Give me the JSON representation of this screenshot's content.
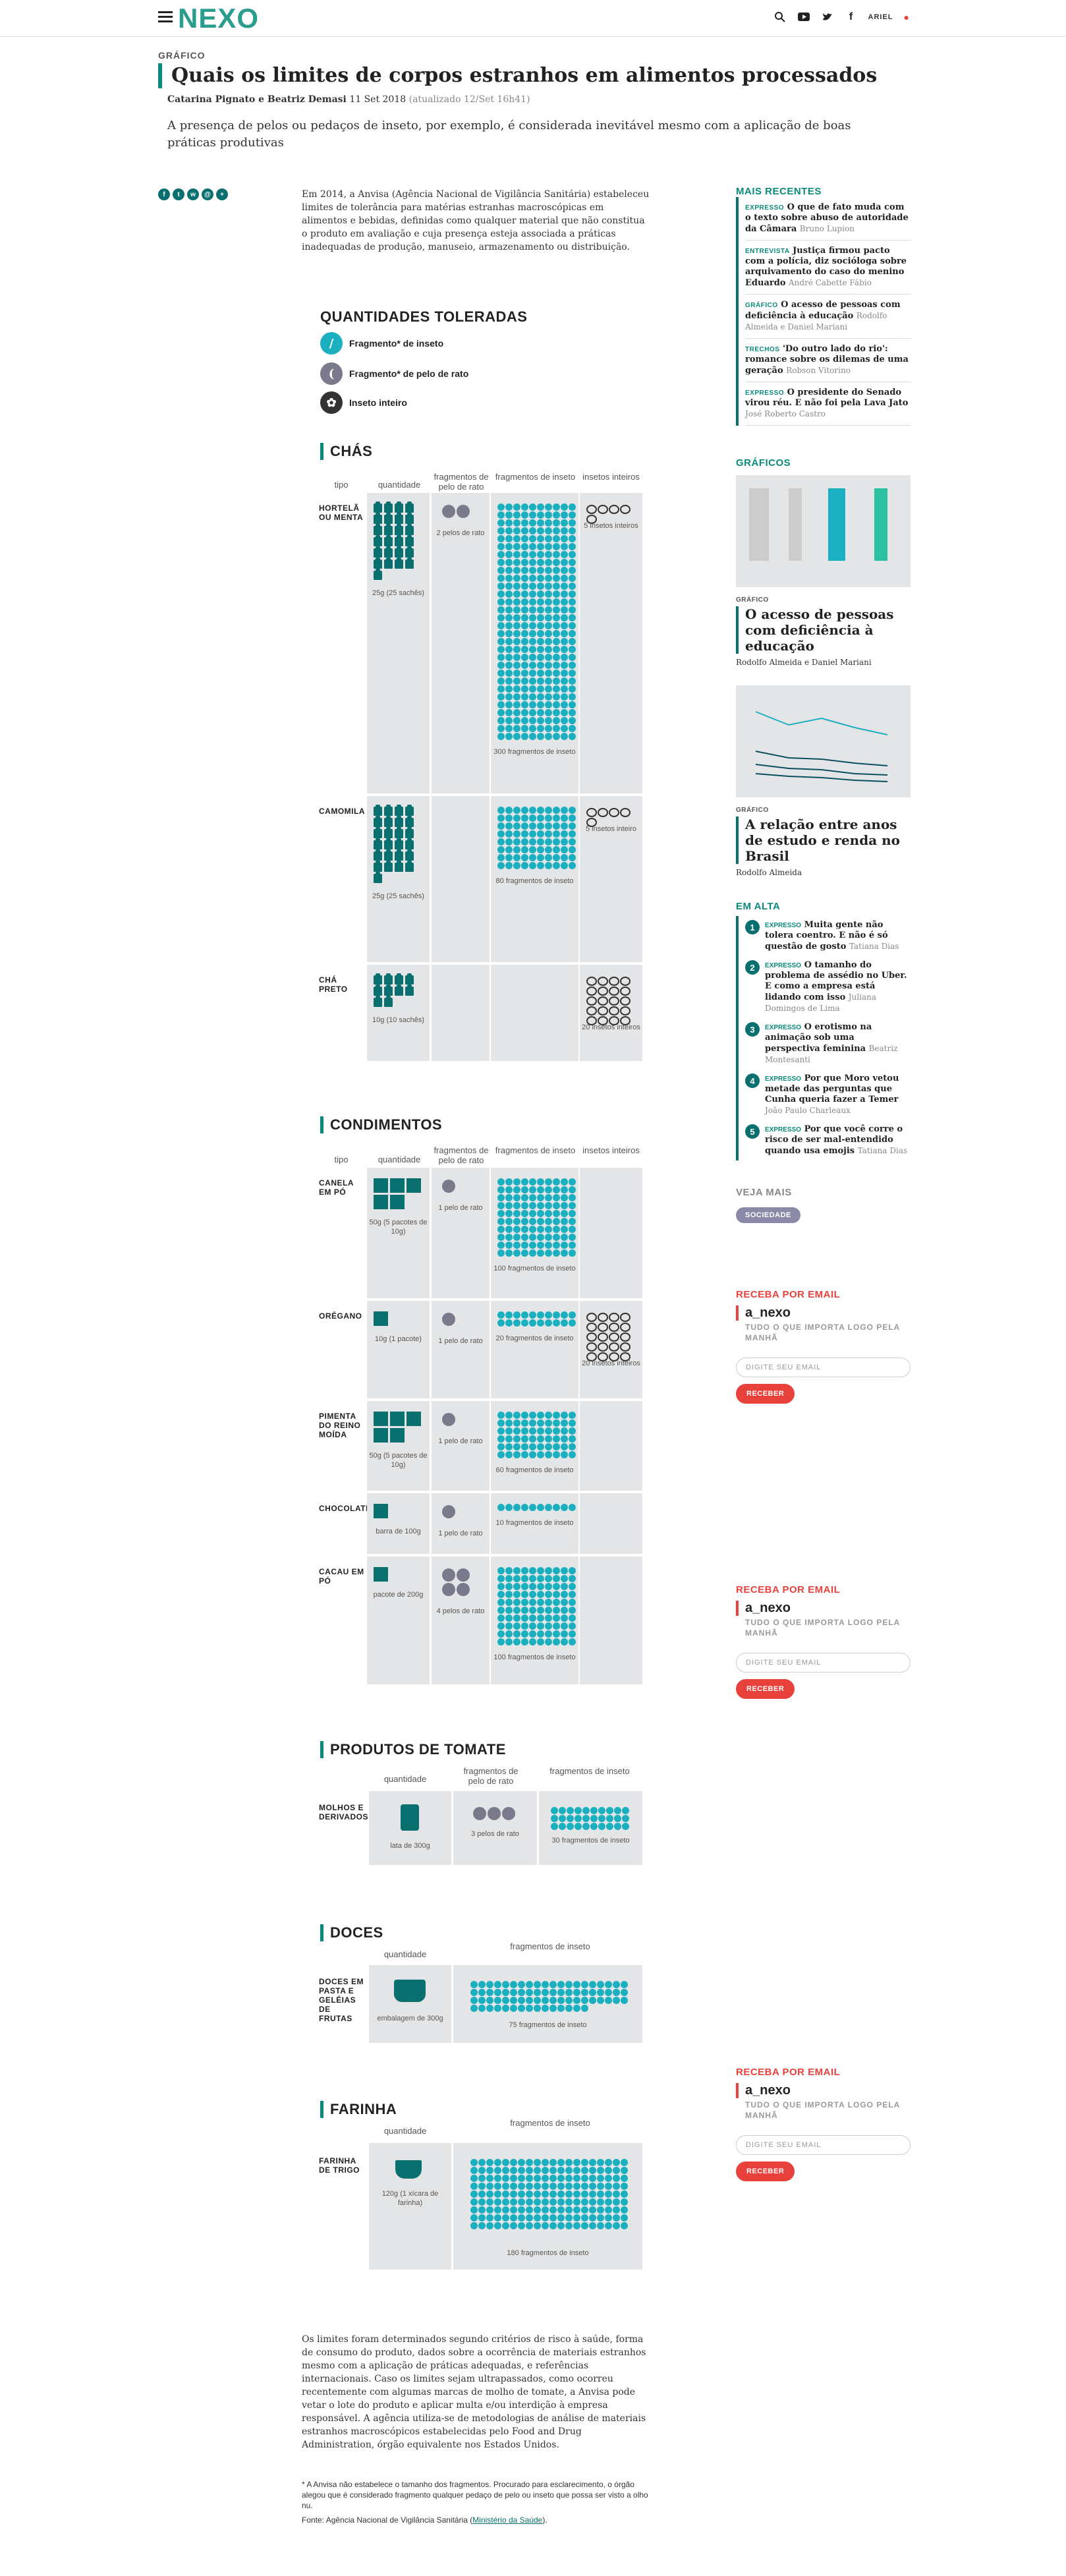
{
  "header": {
    "logo": "NEXO",
    "user": "ARIEL"
  },
  "article": {
    "kicker": "GRÁFICO",
    "title": "Quais os limites de corpos estranhos em alimentos processados",
    "authors": "Catarina Pignato e Beatriz Demasi",
    "date": "11 Set 2018",
    "updated": "(atualizado 12/Set 16h41)",
    "lead": "A presença de pelos ou pedaços de inseto, por exemplo, é considerada inevitável mesmo com a aplicação de boas práticas produtivas",
    "intro": "Em 2014, a Anvisa (Agência Nacional de Vigilância Sanitária) estabeleceu limites de tolerância para matérias estranhas macroscópicas em alimentos e bebidas, definidas como qualquer material que não constitua o produto em avaliação e cuja presença esteja associada a práticas inadequadas de produção, manuseio, armazenamento ou distribuição.",
    "outro": "Os limites foram determinados segundo critérios de risco à saúde, forma de consumo do produto, dados sobre a ocorrência de materiais estranhos mesmo com a aplicação de práticas adequadas, e referências internacionais. Caso os limites sejam ultrapassados, como ocorreu recentemente com algumas marcas de molho de tomate, a Anvisa pode vetar o lote do produto e aplicar multa e/ou interdição à empresa responsável. A agência utiliza-se de metodologias de análise de materiais estranhos macroscópicos estabelecidas pelo Food and Drug Administration, órgão equivalente nos Estados Unidos.",
    "footnote": "* A Anvisa não estabelece o tamanho dos fragmentos. Procurado para esclarecimento, o órgão alegou que é considerado fragmento qualquer pedaço de pelo ou inseto que possa ser visto a olho nu.",
    "source_prefix": "Fonte: Agência Nacional de Vigilância Sanitária (",
    "source_link": "Ministério da Saúde",
    "source_suffix": ")."
  },
  "legend": {
    "title": "QUANTIDADES TOLERADAS",
    "items": [
      "Fragmento* de inseto",
      "Fragmento* de pelo de rato",
      "Inseto inteiro"
    ]
  },
  "chart_data": {
    "type": "table",
    "sections": [
      {
        "name": "CHÁS",
        "columns": [
          "tipo",
          "quantidade",
          "fragmentos de pelo de rato",
          "fragmentos de inseto",
          "insetos inteiros"
        ],
        "rows": [
          {
            "tipo": "HORTELÃ OU MENTA",
            "quantidade": "25g (25 sachês)",
            "pelo": "2 pelos de rato",
            "fragmentos": "300 fragmentos de inseto",
            "inteiros": "5 insetos inteiros"
          },
          {
            "tipo": "CAMOMILA",
            "quantidade": "25g (25 sachês)",
            "pelo": "",
            "fragmentos": "80 fragmentos de inseto",
            "inteiros": "5 insetos inteiro"
          },
          {
            "tipo": "CHÁ PRETO",
            "quantidade": "10g (10 sachês)",
            "pelo": "",
            "fragmentos": "",
            "inteiros": "20 insetos inteiros"
          }
        ]
      },
      {
        "name": "CONDIMENTOS",
        "columns": [
          "tipo",
          "quantidade",
          "fragmentos de pelo de rato",
          "fragmentos de inseto",
          "insetos inteiros"
        ],
        "rows": [
          {
            "tipo": "CANELA EM PÓ",
            "quantidade": "50g (5 pacotes de 10g)",
            "pelo": "1 pelo de rato",
            "fragmentos": "100 fragmentos de inseto",
            "inteiros": ""
          },
          {
            "tipo": "ORÉGANO",
            "quantidade": "10g (1 pacote)",
            "pelo": "1 pelo de rato",
            "fragmentos": "20 fragmentos de inseto",
            "inteiros": "20 insetos inteiros"
          },
          {
            "tipo": "PIMENTA DO REINO MOÍDA",
            "quantidade": "50g (5 pacotes de 10g)",
            "pelo": "1 pelo de rato",
            "fragmentos": "60 fragmentos de inseto",
            "inteiros": ""
          },
          {
            "tipo": "CHOCOLATE",
            "quantidade": "barra de 100g",
            "pelo": "1 pelo de rato",
            "fragmentos": "10 fragmentos de inseto",
            "inteiros": ""
          },
          {
            "tipo": "CACAU EM PÓ",
            "quantidade": "pacote de 200g",
            "pelo": "4 pelos de rato",
            "fragmentos": "100 fragmentos de inseto",
            "inteiros": ""
          }
        ]
      },
      {
        "name": "PRODUTOS DE TOMATE",
        "columns": [
          "quantidade",
          "fragmentos de pelo de rato",
          "fragmentos de inseto"
        ],
        "rows": [
          {
            "tipo": "MOLHOS E DERIVADOS",
            "quantidade": "lata de 300g",
            "pelo": "3 pelos de rato",
            "fragmentos": "30 fragmentos de inseto"
          }
        ]
      },
      {
        "name": "DOCES",
        "columns": [
          "quantidade",
          "fragmentos de inseto"
        ],
        "rows": [
          {
            "tipo": "DOCES EM PASTA E GELÉIAS DE FRUTAS",
            "quantidade": "embalagem de 300g",
            "fragmentos": "75 fragmentos de inseto"
          }
        ]
      },
      {
        "name": "FARINHA",
        "columns": [
          "quantidade",
          "fragmentos de inseto"
        ],
        "rows": [
          {
            "tipo": "FARINHA DE TRIGO",
            "quantidade": "120g (1 xícara de farinha)",
            "fragmentos": "180 fragmentos de inseto"
          }
        ]
      }
    ],
    "counts": {
      "cha": [
        {
          "pkg": 25,
          "hair": 2,
          "frag": 300,
          "bug": 5
        },
        {
          "pkg": 25,
          "hair": 0,
          "frag": 80,
          "bug": 5
        },
        {
          "pkg": 10,
          "hair": 0,
          "frag": 0,
          "bug": 20
        }
      ],
      "cond": [
        {
          "pkg": 5,
          "hair": 1,
          "frag": 100,
          "bug": 0
        },
        {
          "pkg": 1,
          "hair": 1,
          "frag": 20,
          "bug": 20
        },
        {
          "pkg": 5,
          "hair": 1,
          "frag": 60,
          "bug": 0
        },
        {
          "pkg": 1,
          "hair": 1,
          "frag": 10,
          "bug": 0
        },
        {
          "pkg": 1,
          "hair": 4,
          "frag": 100,
          "bug": 0
        }
      ],
      "tomate": {
        "hair": 3,
        "frag": 30
      },
      "doces": {
        "frag": 75
      },
      "farinha": {
        "frag": 180
      }
    },
    "colors": {
      "insect": "#1ab0c0",
      "hair": "#7a7a8c",
      "package": "#0a6f6f",
      "cell": "#e4e5e7"
    }
  },
  "sidebar": {
    "recent_title": "MAIS RECENTES",
    "recent": [
      {
        "tag": "EXPRESSO",
        "text": "O que de fato muda com o texto sobre abuso de autoridade da Câmara",
        "author": "Bruno Lupion"
      },
      {
        "tag": "ENTREVISTA",
        "text": "Justiça firmou pacto com a polícia, diz socióloga sobre arquivamento do caso do menino Eduardo",
        "author": "André Cabette Fábio"
      },
      {
        "tag": "GRÁFICO",
        "text": "O acesso de pessoas com deficiência à educação",
        "author": "Rodolfo Almeida e Daniel Mariani"
      },
      {
        "tag": "TRECHOS",
        "text": "'Do outro lado do rio': romance sobre os dilemas de uma geração",
        "author": "Robson Vitorino"
      },
      {
        "tag": "EXPRESSO",
        "text": "O presidente do Senado virou réu. E não foi pela Lava Jato",
        "author": "José Roberto Castro"
      }
    ],
    "graphics_title": "GRÁFICOS",
    "graphics": [
      {
        "tag": "GRÁFICO",
        "title": "O acesso de pessoas com deficiência à educação",
        "author": "Rodolfo Almeida e Daniel Mariani"
      },
      {
        "tag": "GRÁFICO",
        "title": "A relação entre anos de estudo e renda no Brasil",
        "author": "Rodolfo Almeida"
      }
    ],
    "alta_title": "EM ALTA",
    "alta": [
      {
        "n": "1",
        "tag": "EXPRESSO",
        "text": "Muita gente não tolera coentro. E não é só questão de gosto",
        "author": "Tatiana Dias"
      },
      {
        "n": "2",
        "tag": "EXPRESSO",
        "text": "O tamanho do problema de assédio no Uber. E como a empresa está lidando com isso",
        "author": "Juliana Domingos de Lima"
      },
      {
        "n": "3",
        "tag": "EXPRESSO",
        "text": "O erotismo na animação sob uma perspectiva feminina",
        "author": "Beatriz Montesanti"
      },
      {
        "n": "4",
        "tag": "EXPRESSO",
        "text": "Por que Moro vetou metade das perguntas que Cunha queria fazer a Temer",
        "author": "João Paulo Charleaux"
      },
      {
        "n": "5",
        "tag": "EXPRESSO",
        "text": "Por que você corre o risco de ser mal-entendido quando usa emojis",
        "author": "Tatiana Dias"
      }
    ],
    "more_title": "VEJA MAIS",
    "more_pill": "SOCIEDADE",
    "newsletter": {
      "title": "RECEBA POR EMAIL",
      "name": "a_nexo",
      "sub": "TUDO O QUE IMPORTA LOGO PELA MANHÃ",
      "placeholder": "DIGITE SEU EMAIL",
      "button": "RECEBER"
    }
  }
}
